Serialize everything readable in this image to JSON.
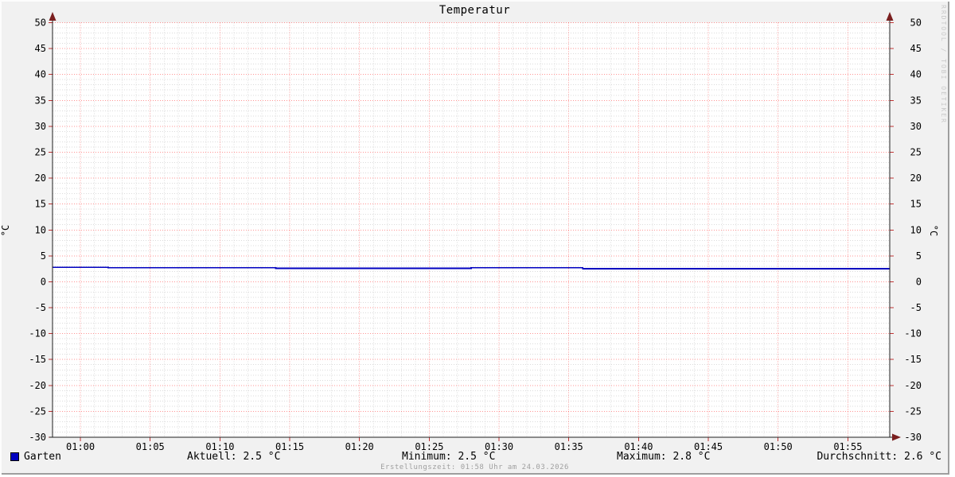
{
  "title": "Temperatur",
  "watermark": "RRDTOOL / TOBI OETIKER",
  "axis_unit_left": "°C",
  "axis_unit_right": "°C",
  "legend": {
    "series_swatch_color": "#0000c0",
    "series_label": "Garten",
    "stats": [
      "Aktuell: 2.5 °C",
      "Minimum: 2.5 °C",
      "Maximum: 2.8 °C",
      "Durchschnitt: 2.6 °C"
    ]
  },
  "footer": "Erstellungszeit: 01:58 Uhr am 24.03.2026",
  "chart_data": {
    "type": "line",
    "title": "Temperatur",
    "ylabel": "°C",
    "ylim": [
      -30,
      50
    ],
    "y_major_step": 5,
    "y_minor_step": 1,
    "y_ticks": [
      -30,
      -25,
      -20,
      -15,
      -10,
      -5,
      0,
      5,
      10,
      15,
      20,
      25,
      30,
      35,
      40,
      45,
      50
    ],
    "x_range_minutes": [
      58,
      118
    ],
    "x_major_step": 5,
    "x_minor_step": 1,
    "x_ticks": [
      {
        "minute": 60,
        "label": "01:00"
      },
      {
        "minute": 65,
        "label": "01:05"
      },
      {
        "minute": 70,
        "label": "01:10"
      },
      {
        "minute": 75,
        "label": "01:15"
      },
      {
        "minute": 80,
        "label": "01:20"
      },
      {
        "minute": 85,
        "label": "01:25"
      },
      {
        "minute": 90,
        "label": "01:30"
      },
      {
        "minute": 95,
        "label": "01:35"
      },
      {
        "minute": 100,
        "label": "01:40"
      },
      {
        "minute": 105,
        "label": "01:45"
      },
      {
        "minute": 110,
        "label": "01:50"
      },
      {
        "minute": 115,
        "label": "01:55"
      }
    ],
    "series": [
      {
        "name": "Garten",
        "color": "#0000c0",
        "steps": [
          {
            "from": 58,
            "to": 62,
            "value": 2.8
          },
          {
            "from": 62,
            "to": 74,
            "value": 2.7
          },
          {
            "from": 74,
            "to": 88,
            "value": 2.6
          },
          {
            "from": 88,
            "to": 96,
            "value": 2.7
          },
          {
            "from": 96,
            "to": 118,
            "value": 2.5
          }
        ]
      }
    ],
    "stats": {
      "aktuell_c": 2.5,
      "minimum_c": 2.5,
      "maximum_c": 2.8,
      "durchschnitt_c": 2.6
    },
    "legend_position": "bottom",
    "grid": true,
    "colors": {
      "background": "#f1f1f1",
      "canvas": "#ffffff",
      "minor_grid": "#cfcfcf",
      "major_grid": "#ff0000",
      "major_tick": "#c03333",
      "axis": "#1f1f1f",
      "arrow": "#7a1f1f"
    }
  }
}
